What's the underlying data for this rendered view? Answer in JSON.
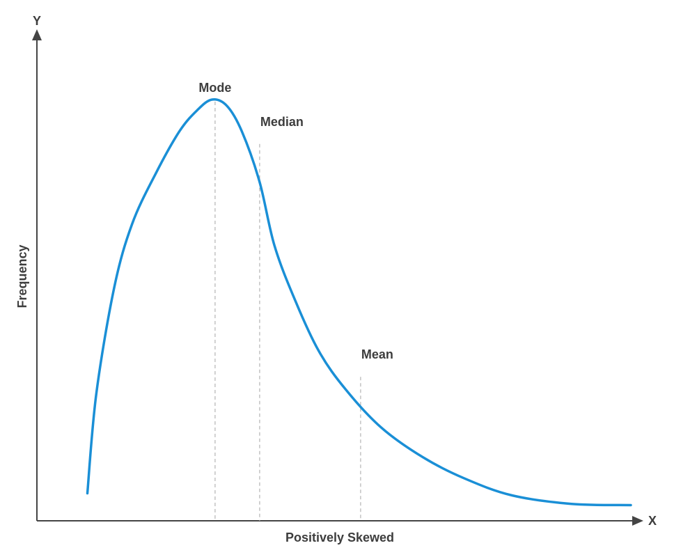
{
  "chart_data": {
    "type": "line",
    "xlabel": "Positively Skewed",
    "ylabel": "Frequency",
    "x_axis_letter": "X",
    "y_axis_letter": "Y",
    "xlim": [
      0,
      100
    ],
    "ylim": [
      0,
      100
    ],
    "grid": false,
    "series": [
      {
        "values": [
          [
            8.5,
            6.5
          ],
          [
            10,
            30
          ],
          [
            13,
            55
          ],
          [
            16,
            70
          ],
          [
            20,
            82
          ],
          [
            24,
            92
          ],
          [
            27,
            97
          ],
          [
            29.5,
            99.5
          ],
          [
            32,
            98
          ],
          [
            34.5,
            92
          ],
          [
            37.5,
            80
          ],
          [
            40,
            65
          ],
          [
            43.5,
            52
          ],
          [
            47.5,
            40
          ],
          [
            52,
            31
          ],
          [
            58,
            22
          ],
          [
            65,
            15
          ],
          [
            72,
            10
          ],
          [
            80,
            6
          ],
          [
            90,
            4
          ],
          [
            100,
            3.7
          ]
        ],
        "color": "#1a8fd6"
      }
    ],
    "annotations": [
      {
        "label": "Mode",
        "x": 30,
        "y": 100
      },
      {
        "label": "Median",
        "x": 37.5,
        "y": 90
      },
      {
        "label": "Mean",
        "x": 54.5,
        "y": 35
      }
    ]
  }
}
